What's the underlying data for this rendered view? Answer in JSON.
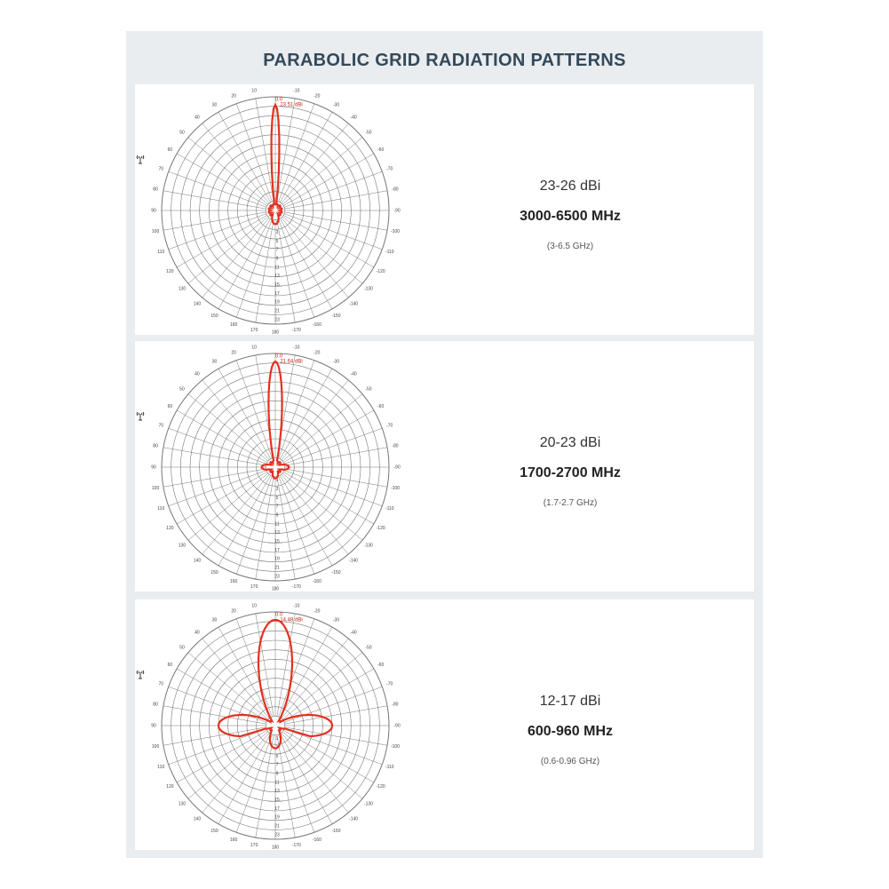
{
  "title": "PARABOLIC GRID RADIATION PATTERNS",
  "polar_grid": {
    "angle_labels": [
      10,
      20,
      30,
      40,
      50,
      60,
      70,
      80,
      90,
      100,
      110,
      120,
      130,
      140,
      150,
      160,
      170,
      180,
      -10,
      -20,
      -30,
      -40,
      -50,
      -60,
      -70,
      -80,
      -90,
      -100,
      -110,
      -120,
      -130,
      -140,
      -150,
      -160,
      -170
    ],
    "ring_labels": [
      1,
      3,
      5,
      7,
      9,
      11,
      13,
      15,
      17,
      19,
      21,
      23
    ]
  },
  "panels": [
    {
      "peak_angle": "0.0",
      "peak_gain": "23.51 dBi",
      "gain": "23-26 dBi",
      "frequency": "3000-6500 MHz",
      "frequency_ghz": "(3-6.5 GHz)"
    },
    {
      "peak_angle": "0.0",
      "peak_gain": "21.64 dBi",
      "gain": "20-23 dBi",
      "frequency": "1700-2700 MHz",
      "frequency_ghz": "(1.7-2.7 GHz)"
    },
    {
      "peak_angle": "0.0",
      "peak_gain": "14.48 dBi",
      "gain": "12-17 dBi",
      "frequency": "600-960 MHz",
      "frequency_ghz": "(0.6-0.96 GHz)"
    }
  ]
}
